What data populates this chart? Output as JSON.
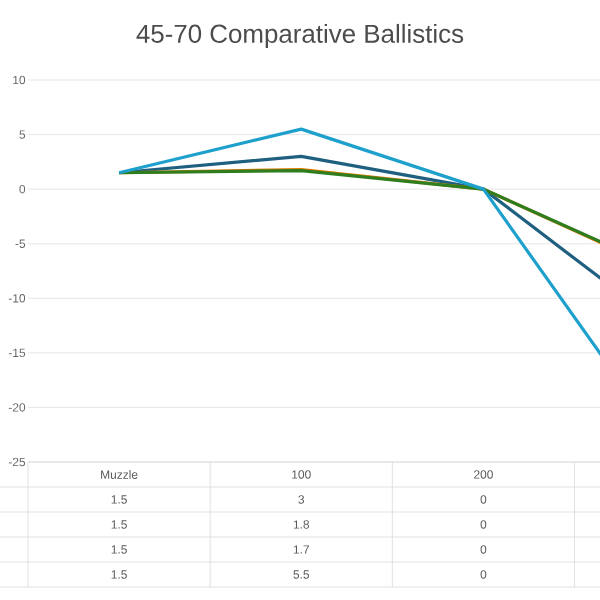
{
  "chart_data": {
    "type": "line",
    "title": "45-70 Comparative Ballistics",
    "categories": [
      "Muzzle",
      "100",
      "200",
      null
    ],
    "series": [
      {
        "color": "#1f5f7f",
        "values": [
          1.5,
          3,
          0,
          -12.7
        ],
        "value_labels": [
          "1.5",
          "3",
          "0",
          null
        ]
      },
      {
        "color": "#e07b00",
        "values": [
          1.5,
          1.8,
          0,
          -7.6
        ],
        "value_labels": [
          "1.5",
          "1.8",
          "0",
          null
        ]
      },
      {
        "color": "#2e7d1e",
        "values": [
          1.5,
          1.7,
          0,
          -7.5
        ],
        "value_labels": [
          "1.5",
          "1.7",
          "0",
          null
        ]
      },
      {
        "color": "#1ea0cc",
        "values": [
          1.5,
          5.5,
          0,
          -23.5
        ],
        "value_labels": [
          "1.5",
          "5.5",
          "0",
          null
        ]
      }
    ],
    "ylim": [
      -25,
      10
    ],
    "yticks": [
      -25,
      -20,
      -15,
      -10,
      -5,
      0,
      5,
      10
    ],
    "grid": "y",
    "marker": "none",
    "line_style": "solid"
  }
}
